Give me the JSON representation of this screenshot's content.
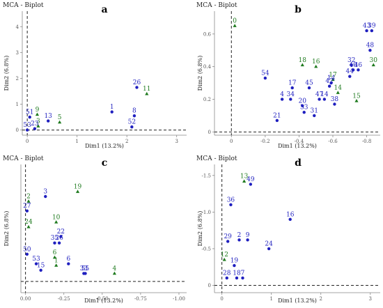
{
  "figure": {
    "colors": {
      "blue": "#1f1fbf",
      "green": "#1e7a1e"
    }
  },
  "chart_data": [
    {
      "type": "scatter",
      "title": "MCA - Biplot",
      "panel_label": "a",
      "xlabel": "Dim1 (13.2%)",
      "ylabel": "Dim2 (6.8%)",
      "xlim": [
        -0.1,
        3.2
      ],
      "ylim": [
        -0.2,
        4.6
      ],
      "xticks": [
        0,
        1,
        2,
        3
      ],
      "xtick_labels": [
        "0",
        "1",
        "2",
        "3"
      ],
      "yticks": [
        0,
        1,
        2,
        3,
        4
      ],
      "ytick_labels": [
        "0",
        "1",
        "2",
        "3",
        "4"
      ],
      "points": [
        {
          "label": "51",
          "x": 0.05,
          "y": 0.5,
          "group": "blue"
        },
        {
          "label": "9",
          "x": 0.2,
          "y": 0.6,
          "group": "green"
        },
        {
          "label": "13",
          "x": 0.42,
          "y": 0.35,
          "group": "blue"
        },
        {
          "label": "5",
          "x": 0.65,
          "y": 0.3,
          "group": "green"
        },
        {
          "label": "3",
          "x": 0.22,
          "y": 0.15,
          "group": "green"
        },
        {
          "label": "23",
          "x": 0.15,
          "y": 0.05,
          "group": "blue"
        },
        {
          "label": "53",
          "x": 0.0,
          "y": 0.0,
          "group": "blue"
        },
        {
          "label": "1",
          "x": 1.7,
          "y": 0.7,
          "group": "blue"
        },
        {
          "label": "26",
          "x": 2.2,
          "y": 1.65,
          "group": "blue"
        },
        {
          "label": "11",
          "x": 2.4,
          "y": 1.4,
          "group": "green"
        },
        {
          "label": "8",
          "x": 2.15,
          "y": 0.55,
          "group": "blue"
        },
        {
          "label": "52",
          "x": 2.1,
          "y": 0.12,
          "group": "blue"
        }
      ]
    },
    {
      "type": "scatter",
      "title": "MCA - Biplot",
      "panel_label": "b",
      "xlabel": "Dim1 (13.2%)",
      "ylabel": "Dim2 (6.8%)",
      "xlim": [
        0.1,
        -0.88
      ],
      "ylim": [
        -0.02,
        0.74
      ],
      "xticks": [
        0,
        -0.2,
        -0.4,
        -0.6,
        -0.8
      ],
      "xtick_labels": [
        "0",
        "-0.2",
        "-0.4",
        "-0.6",
        "-0.8"
      ],
      "yticks": [
        0,
        0.2,
        0.4,
        0.6
      ],
      "ytick_labels": [
        "0",
        "0.2",
        "0.4",
        "0.6"
      ],
      "points": [
        {
          "label": "0",
          "x": -0.02,
          "y": 0.65,
          "group": "green"
        },
        {
          "label": "43",
          "x": -0.8,
          "y": 0.62,
          "group": "blue"
        },
        {
          "label": "39",
          "x": -0.83,
          "y": 0.62,
          "group": "blue"
        },
        {
          "label": "48",
          "x": -0.82,
          "y": 0.5,
          "group": "blue"
        },
        {
          "label": "54",
          "x": -0.2,
          "y": 0.33,
          "group": "blue"
        },
        {
          "label": "18",
          "x": -0.42,
          "y": 0.41,
          "group": "green"
        },
        {
          "label": "16",
          "x": -0.5,
          "y": 0.4,
          "group": "green"
        },
        {
          "label": "30",
          "x": -0.84,
          "y": 0.41,
          "group": "green"
        },
        {
          "label": "32",
          "x": -0.71,
          "y": 0.41,
          "group": "blue"
        },
        {
          "label": "40",
          "x": -0.72,
          "y": 0.38,
          "group": "blue"
        },
        {
          "label": "46",
          "x": -0.75,
          "y": 0.38,
          "group": "blue"
        },
        {
          "label": "44",
          "x": -0.7,
          "y": 0.34,
          "group": "blue"
        },
        {
          "label": "17",
          "x": -0.36,
          "y": 0.27,
          "group": "blue"
        },
        {
          "label": "45",
          "x": -0.46,
          "y": 0.27,
          "group": "blue"
        },
        {
          "label": "17",
          "x": -0.6,
          "y": 0.32,
          "group": "green"
        },
        {
          "label": "14",
          "x": -0.59,
          "y": 0.3,
          "group": "blue"
        },
        {
          "label": "42",
          "x": -0.58,
          "y": 0.28,
          "group": "blue"
        },
        {
          "label": "14",
          "x": -0.63,
          "y": 0.24,
          "group": "green"
        },
        {
          "label": "4",
          "x": -0.3,
          "y": 0.2,
          "group": "blue"
        },
        {
          "label": "34",
          "x": -0.35,
          "y": 0.2,
          "group": "blue"
        },
        {
          "label": "20",
          "x": -0.42,
          "y": 0.16,
          "group": "blue"
        },
        {
          "label": "47",
          "x": -0.52,
          "y": 0.2,
          "group": "blue"
        },
        {
          "label": "14",
          "x": -0.55,
          "y": 0.2,
          "group": "blue"
        },
        {
          "label": "38",
          "x": -0.61,
          "y": 0.17,
          "group": "blue"
        },
        {
          "label": "15",
          "x": -0.74,
          "y": 0.19,
          "group": "green"
        },
        {
          "label": "33",
          "x": -0.43,
          "y": 0.12,
          "group": "blue"
        },
        {
          "label": "31",
          "x": -0.49,
          "y": 0.1,
          "group": "blue"
        },
        {
          "label": "21",
          "x": -0.27,
          "y": 0.07,
          "group": "blue"
        }
      ]
    },
    {
      "type": "scatter",
      "title": "MCA - Biplot",
      "panel_label": "c",
      "xlabel": "Dim1 (13.2%)",
      "ylabel": "Dim2 (6.8%)",
      "xlim": [
        0.03,
        -1.05
      ],
      "ylim": [
        -0.07,
        0.73
      ],
      "xticks": [
        0,
        -0.25,
        -0.5,
        -0.75,
        -1
      ],
      "xtick_labels": [
        "0.00",
        "-0.25",
        "-0.50",
        "-0.75",
        "-1.00"
      ],
      "yticks": [],
      "ytick_labels": [],
      "points": [
        {
          "label": "19",
          "x": -0.34,
          "y": 0.56,
          "group": "green"
        },
        {
          "label": "2",
          "x": -0.02,
          "y": 0.5,
          "group": "green"
        },
        {
          "label": "27",
          "x": -0.01,
          "y": 0.44,
          "group": "blue"
        },
        {
          "label": "3",
          "x": -0.13,
          "y": 0.53,
          "group": "blue"
        },
        {
          "label": "10",
          "x": -0.2,
          "y": 0.37,
          "group": "green"
        },
        {
          "label": "24",
          "x": -0.02,
          "y": 0.34,
          "group": "green"
        },
        {
          "label": "22",
          "x": -0.23,
          "y": 0.28,
          "group": "blue"
        },
        {
          "label": "35",
          "x": -0.19,
          "y": 0.24,
          "group": "blue"
        },
        {
          "label": "26",
          "x": -0.22,
          "y": 0.24,
          "group": "blue"
        },
        {
          "label": "50",
          "x": -0.01,
          "y": 0.17,
          "group": "blue"
        },
        {
          "label": "6",
          "x": -0.19,
          "y": 0.15,
          "group": "green"
        },
        {
          "label": "6",
          "x": -0.28,
          "y": 0.11,
          "group": "blue"
        },
        {
          "label": "53",
          "x": -0.07,
          "y": 0.11,
          "group": "blue"
        },
        {
          "label": "15",
          "x": -0.1,
          "y": 0.07,
          "group": "blue"
        },
        {
          "label": "1",
          "x": -0.2,
          "y": 0.1,
          "group": "green"
        },
        {
          "label": "33",
          "x": -0.38,
          "y": 0.05,
          "group": "blue"
        },
        {
          "label": "55",
          "x": -0.39,
          "y": 0.05,
          "group": "blue"
        },
        {
          "label": "4",
          "x": -0.58,
          "y": 0.05,
          "group": "green"
        }
      ]
    },
    {
      "type": "scatter",
      "title": "MCA - Biplot",
      "panel_label": "d",
      "xlabel": "Dim1 (13.2%)",
      "ylabel": "Dim2 (6.8%)",
      "xlim": [
        -0.15,
        3.2
      ],
      "ylim": [
        0.1,
        -1.65
      ],
      "xticks": [
        0,
        1,
        2,
        3
      ],
      "xtick_labels": [
        "0",
        "1",
        "2",
        "3"
      ],
      "yticks": [
        -1.5,
        -1,
        -0.5,
        0
      ],
      "ytick_labels": [
        "-1.5",
        "-1.0",
        "-0.5",
        "0"
      ],
      "points": [
        {
          "label": "13",
          "x": 0.45,
          "y": -1.42,
          "group": "green"
        },
        {
          "label": "49",
          "x": 0.58,
          "y": -1.38,
          "group": "blue"
        },
        {
          "label": "36",
          "x": 0.18,
          "y": -1.1,
          "group": "blue"
        },
        {
          "label": "16",
          "x": 1.38,
          "y": -0.9,
          "group": "blue"
        },
        {
          "label": "29",
          "x": 0.12,
          "y": -0.6,
          "group": "blue"
        },
        {
          "label": "2",
          "x": 0.35,
          "y": -0.62,
          "group": "blue"
        },
        {
          "label": "9",
          "x": 0.52,
          "y": -0.62,
          "group": "blue"
        },
        {
          "label": "24",
          "x": 0.95,
          "y": -0.5,
          "group": "blue"
        },
        {
          "label": "12",
          "x": 0.05,
          "y": -0.35,
          "group": "green"
        },
        {
          "label": "19",
          "x": 0.25,
          "y": -0.27,
          "group": "blue"
        },
        {
          "label": "28",
          "x": 0.1,
          "y": -0.1,
          "group": "blue"
        },
        {
          "label": "18",
          "x": 0.3,
          "y": -0.1,
          "group": "blue"
        },
        {
          "label": "7",
          "x": 0.42,
          "y": -0.1,
          "group": "blue"
        }
      ]
    }
  ]
}
